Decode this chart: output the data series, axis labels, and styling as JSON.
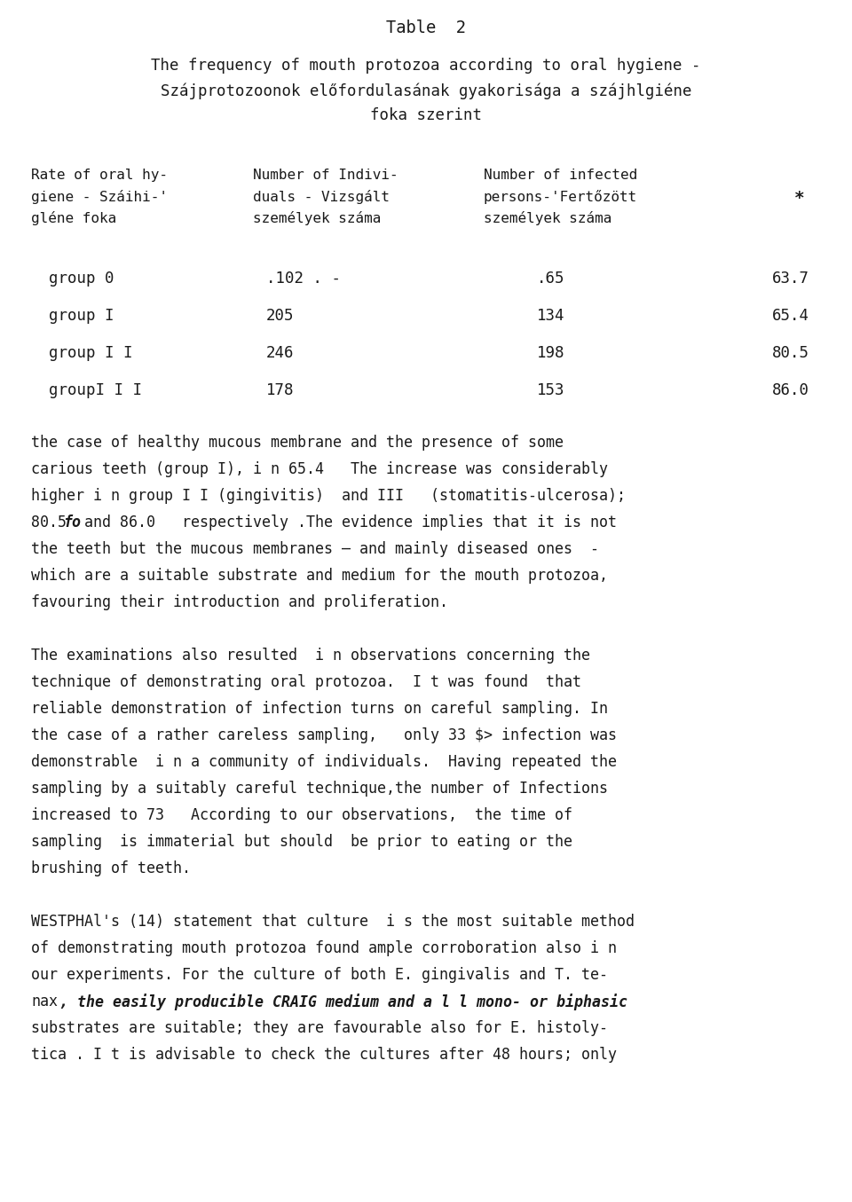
{
  "bg_color": "#ffffff",
  "text_color": "#1a1a1a",
  "title": "Table  2",
  "subtitle_lines": [
    "The frequency of mouth protozoa according to oral hygiene -",
    "Szájprotozoonok előfordulasának gyakorisága a szájhlgiéne",
    "foka szerint"
  ],
  "header_col1_lines": [
    "Rate of oral hy-",
    "giene - Száihi-'",
    "gléne foka"
  ],
  "header_col2_lines": [
    "Number of Indivi-",
    "duals - Vizsgált",
    "személyek száma"
  ],
  "header_col3_lines": [
    "Number of infected",
    "persons-'Fertőzött",
    "személyek száma"
  ],
  "header_star": "*",
  "table_rows": [
    [
      "group 0",
      ".102 . -",
      ".65",
      "63.7"
    ],
    [
      "group I",
      "205",
      "134",
      "65.4"
    ],
    [
      "group I I",
      "246",
      "198",
      "80.5"
    ],
    [
      "groupI I I",
      "178",
      "153",
      "86.0"
    ]
  ],
  "para1_lines": [
    "the case of healthy mucous membrane and the presence of some",
    "carious teeth (group I), i n 65.4   The increase was considerably",
    "higher i n group I I (gingivitis)  and III   (stomatitis-ulcerosa);",
    [
      "80.5 ",
      "fo",
      " and 86.0   respectively .The evidence implies that it is not"
    ],
    "the teeth but the mucous membranes — and mainly diseased ones  -",
    "which are a suitable substrate and medium for the mouth protozoa,",
    "favouring their introduction and proliferation."
  ],
  "para2_lines": [
    "The examinations also resulted  i n observations concerning the",
    "technique of demonstrating oral protozoa.  I t was found  that",
    "reliable demonstration of infection turns on careful sampling. In",
    "the case of a rather careless sampling,   only 33 $> infection was",
    "demonstrable  i n a community of individuals.  Having repeated the",
    "sampling by a suitably careful technique,the number of Infections",
    "increased to 73   According to our observations,  the time of",
    "sampling  is immaterial but should  be prior to eating or the",
    "brushing of teeth."
  ],
  "para3_lines": [
    "WESTPHAl's (14) statement that culture  i s the most suitable method",
    "of demonstrating mouth protozoa found ample corroboration also i n",
    "our experiments. For the culture of both E. gingivalis and T. te-",
    [
      "nax",
      " , the easily producible CRAIG medium and a l l mono- or biphasic"
    ],
    "substrates are suitable; they are favourable also for E. histoly-",
    "tica . I t is advisable to check the cultures after 48 hours; only"
  ]
}
